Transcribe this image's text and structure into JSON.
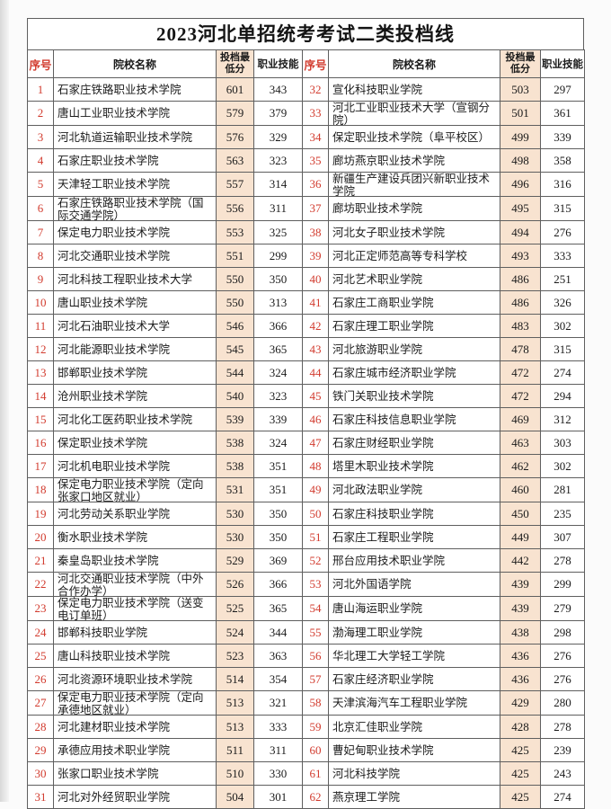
{
  "page": {
    "title": "2023河北单招统考考试二类投档线"
  },
  "columns": [
    "序号",
    "院校名称",
    "投档最低分",
    "职业技能"
  ],
  "rows_left": [
    {
      "no": "1",
      "name": "石家庄铁路职业技术学院",
      "score": "601",
      "skill": "343"
    },
    {
      "no": "2",
      "name": "唐山工业职业技术学院",
      "score": "579",
      "skill": "379"
    },
    {
      "no": "3",
      "name": "河北轨道运输职业技术学院",
      "score": "576",
      "skill": "329"
    },
    {
      "no": "4",
      "name": "石家庄职业技术学院",
      "score": "563",
      "skill": "323"
    },
    {
      "no": "5",
      "name": "天津轻工职业技术学院",
      "score": "557",
      "skill": "314"
    },
    {
      "no": "6",
      "name": "石家庄铁路职业技术学院（国际交通学院）",
      "score": "556",
      "skill": "311"
    },
    {
      "no": "7",
      "name": "保定电力职业技术学院",
      "score": "553",
      "skill": "325"
    },
    {
      "no": "8",
      "name": "河北交通职业技术学院",
      "score": "551",
      "skill": "299"
    },
    {
      "no": "9",
      "name": "河北科技工程职业技术大学",
      "score": "550",
      "skill": "350"
    },
    {
      "no": "10",
      "name": "唐山职业技术学院",
      "score": "550",
      "skill": "313"
    },
    {
      "no": "11",
      "name": "河北石油职业技术大学",
      "score": "546",
      "skill": "366"
    },
    {
      "no": "12",
      "name": "河北能源职业技术学院",
      "score": "545",
      "skill": "365"
    },
    {
      "no": "13",
      "name": "邯郸职业技术学院",
      "score": "544",
      "skill": "324"
    },
    {
      "no": "14",
      "name": "沧州职业技术学院",
      "score": "540",
      "skill": "323"
    },
    {
      "no": "15",
      "name": "河北化工医药职业技术学院",
      "score": "539",
      "skill": "339"
    },
    {
      "no": "16",
      "name": "保定职业技术学院",
      "score": "538",
      "skill": "324"
    },
    {
      "no": "17",
      "name": "河北机电职业技术学院",
      "score": "538",
      "skill": "351"
    },
    {
      "no": "18",
      "name": "保定电力职业技术学院（定向张家口地区就业）",
      "score": "531",
      "skill": "351"
    },
    {
      "no": "19",
      "name": "河北劳动关系职业学院",
      "score": "530",
      "skill": "350"
    },
    {
      "no": "20",
      "name": "衡水职业技术学院",
      "score": "530",
      "skill": "350"
    },
    {
      "no": "21",
      "name": "秦皇岛职业技术学院",
      "score": "529",
      "skill": "369"
    },
    {
      "no": "22",
      "name": "河北交通职业技术学院（中外合作办学）",
      "score": "526",
      "skill": "366"
    },
    {
      "no": "23",
      "name": "保定电力职业技术学院（送变电订单班）",
      "score": "525",
      "skill": "365"
    },
    {
      "no": "24",
      "name": "邯郸科技职业学院",
      "score": "524",
      "skill": "344"
    },
    {
      "no": "25",
      "name": "唐山科技职业技术学院",
      "score": "523",
      "skill": "363"
    },
    {
      "no": "26",
      "name": "河北资源环境职业技术学院",
      "score": "514",
      "skill": "354"
    },
    {
      "no": "27",
      "name": "保定电力职业技术学院（定向承德地区就业）",
      "score": "513",
      "skill": "321"
    },
    {
      "no": "28",
      "name": "河北建材职业技术学院",
      "score": "513",
      "skill": "333"
    },
    {
      "no": "29",
      "name": "承德应用技术职业学院",
      "score": "511",
      "skill": "311"
    },
    {
      "no": "30",
      "name": "张家口职业技术学院",
      "score": "510",
      "skill": "330"
    },
    {
      "no": "31",
      "name": "河北对外经贸职业学院",
      "score": "504",
      "skill": "301"
    }
  ],
  "rows_right": [
    {
      "no": "32",
      "name": "宣化科技职业学院",
      "score": "503",
      "skill": "297"
    },
    {
      "no": "33",
      "name": "河北工业职业技术大学（宣钢分院）",
      "score": "501",
      "skill": "361"
    },
    {
      "no": "34",
      "name": "保定职业技术学院（阜平校区）",
      "score": "499",
      "skill": "339"
    },
    {
      "no": "35",
      "name": "廊坊燕京职业技术学院",
      "score": "498",
      "skill": "358"
    },
    {
      "no": "36",
      "name": "新疆生产建设兵团兴新职业技术学院",
      "score": "496",
      "skill": "316"
    },
    {
      "no": "37",
      "name": "廊坊职业技术学院",
      "score": "495",
      "skill": "315"
    },
    {
      "no": "38",
      "name": "河北女子职业技术学院",
      "score": "494",
      "skill": "276"
    },
    {
      "no": "39",
      "name": "河北正定师范高等专科学校",
      "score": "493",
      "skill": "333"
    },
    {
      "no": "40",
      "name": "河北艺术职业学院",
      "score": "486",
      "skill": "251"
    },
    {
      "no": "41",
      "name": "石家庄工商职业学院",
      "score": "486",
      "skill": "326"
    },
    {
      "no": "42",
      "name": "石家庄理工职业学院",
      "score": "483",
      "skill": "302"
    },
    {
      "no": "43",
      "name": "河北旅游职业学院",
      "score": "478",
      "skill": "315"
    },
    {
      "no": "44",
      "name": "石家庄城市经济职业学院",
      "score": "472",
      "skill": "274"
    },
    {
      "no": "45",
      "name": "铁门关职业技术学院",
      "score": "472",
      "skill": "294"
    },
    {
      "no": "46",
      "name": "石家庄科技信息职业学院",
      "score": "469",
      "skill": "312"
    },
    {
      "no": "47",
      "name": "石家庄财经职业学院",
      "score": "463",
      "skill": "303"
    },
    {
      "no": "48",
      "name": "塔里木职业技术学院",
      "score": "462",
      "skill": "302"
    },
    {
      "no": "49",
      "name": "河北政法职业学院",
      "score": "460",
      "skill": "281"
    },
    {
      "no": "50",
      "name": "石家庄科技职业学院",
      "score": "450",
      "skill": "235"
    },
    {
      "no": "51",
      "name": "石家庄工程职业学院",
      "score": "449",
      "skill": "307"
    },
    {
      "no": "52",
      "name": "邢台应用技术职业学院",
      "score": "442",
      "skill": "278"
    },
    {
      "no": "53",
      "name": "河北外国语学院",
      "score": "439",
      "skill": "299"
    },
    {
      "no": "54",
      "name": "唐山海运职业学院",
      "score": "439",
      "skill": "279"
    },
    {
      "no": "55",
      "name": "渤海理工职业学院",
      "score": "438",
      "skill": "298"
    },
    {
      "no": "56",
      "name": "华北理工大学轻工学院",
      "score": "436",
      "skill": "276"
    },
    {
      "no": "57",
      "name": "石家庄经济职业学院",
      "score": "436",
      "skill": "276"
    },
    {
      "no": "58",
      "name": "天津滨海汽车工程职业学院",
      "score": "429",
      "skill": "280"
    },
    {
      "no": "59",
      "name": "北京汇佳职业学院",
      "score": "428",
      "skill": "278"
    },
    {
      "no": "60",
      "name": "曹妃甸职业技术学院",
      "score": "425",
      "skill": "239"
    },
    {
      "no": "61",
      "name": "河北科技学院",
      "score": "425",
      "skill": "243"
    },
    {
      "no": "62",
      "name": "燕京理工学院",
      "score": "425",
      "skill": "274"
    }
  ],
  "colors": {
    "accent_red": "#d23b2e",
    "score_bg": "#f8e3d0",
    "border": "#5f5f5f"
  }
}
